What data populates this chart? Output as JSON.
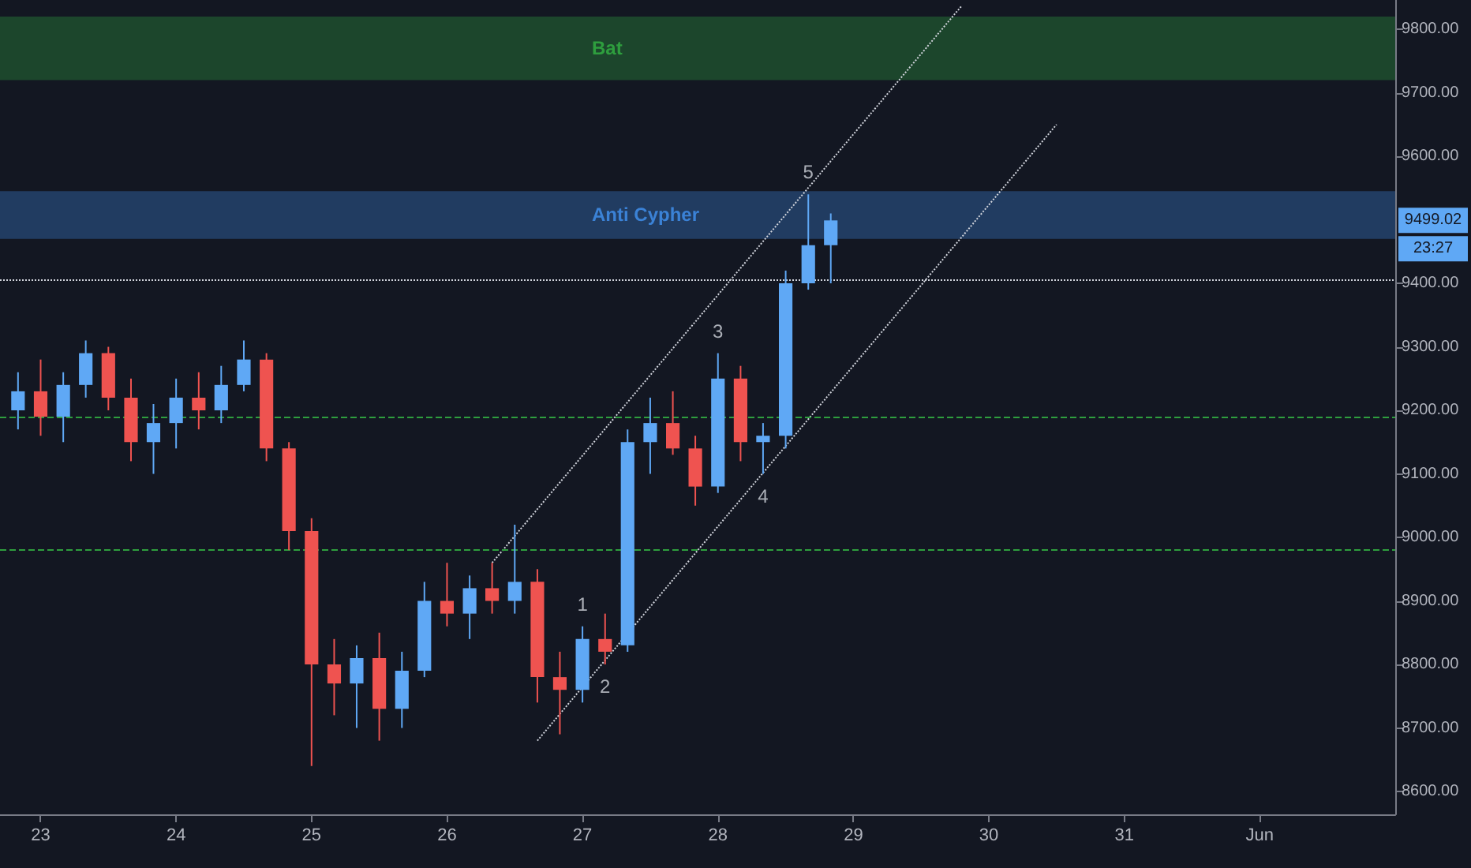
{
  "chart_data": {
    "type": "candlestick",
    "x": [
      22.833,
      23,
      23.167,
      23.333,
      23.5,
      23.667,
      23.833,
      24,
      24.167,
      24.333,
      24.5,
      24.667,
      24.833,
      25,
      25.167,
      25.333,
      25.5,
      25.667,
      25.833,
      26,
      26.167,
      26.333,
      26.5,
      26.667,
      26.833,
      27,
      27.167,
      27.333,
      27.5,
      27.667,
      27.833,
      28,
      28.167,
      28.333,
      28.5,
      28.667,
      28.833
    ],
    "ohlc": [
      [
        9200,
        9260,
        9170,
        9230
      ],
      [
        9230,
        9280,
        9160,
        9190
      ],
      [
        9190,
        9260,
        9150,
        9240
      ],
      [
        9240,
        9310,
        9220,
        9290
      ],
      [
        9290,
        9300,
        9200,
        9220
      ],
      [
        9220,
        9250,
        9120,
        9150
      ],
      [
        9150,
        9210,
        9100,
        9180
      ],
      [
        9180,
        9250,
        9140,
        9220
      ],
      [
        9220,
        9260,
        9170,
        9200
      ],
      [
        9200,
        9270,
        9180,
        9240
      ],
      [
        9240,
        9310,
        9230,
        9280
      ],
      [
        9280,
        9290,
        9120,
        9140
      ],
      [
        9140,
        9150,
        8980,
        9010
      ],
      [
        9010,
        9030,
        8640,
        8800
      ],
      [
        8800,
        8840,
        8720,
        8770
      ],
      [
        8770,
        8830,
        8700,
        8810
      ],
      [
        8810,
        8850,
        8680,
        8730
      ],
      [
        8730,
        8820,
        8700,
        8790
      ],
      [
        8790,
        8930,
        8780,
        8900
      ],
      [
        8900,
        8960,
        8860,
        8880
      ],
      [
        8880,
        8940,
        8840,
        8920
      ],
      [
        8920,
        8960,
        8880,
        8900
      ],
      [
        8900,
        9020,
        8880,
        8930
      ],
      [
        8930,
        8950,
        8740,
        8780
      ],
      [
        8780,
        8820,
        8690,
        8760
      ],
      [
        8760,
        8860,
        8740,
        8840
      ],
      [
        8840,
        8880,
        8800,
        8820
      ],
      [
        8830,
        9170,
        8820,
        9150
      ],
      [
        9150,
        9220,
        9100,
        9180
      ],
      [
        9180,
        9230,
        9130,
        9140
      ],
      [
        9140,
        9160,
        9050,
        9080
      ],
      [
        9080,
        9290,
        9070,
        9250
      ],
      [
        9250,
        9270,
        9120,
        9150
      ],
      [
        9150,
        9180,
        9100,
        9160
      ],
      [
        9160,
        9420,
        9140,
        9400
      ],
      [
        9400,
        9540,
        9390,
        9460
      ],
      [
        9460,
        9510,
        9400,
        9499.02
      ]
    ],
    "colors": [
      "#5fa8f5",
      "#ef5350",
      "#5fa8f5",
      "#5fa8f5",
      "#ef5350",
      "#ef5350",
      "#5fa8f5",
      "#5fa8f5",
      "#ef5350",
      "#5fa8f5",
      "#5fa8f5",
      "#ef5350",
      "#ef5350",
      "#ef5350",
      "#ef5350",
      "#5fa8f5",
      "#ef5350",
      "#5fa8f5",
      "#5fa8f5",
      "#ef5350",
      "#5fa8f5",
      "#ef5350",
      "#5fa8f5",
      "#ef5350",
      "#ef5350",
      "#5fa8f5",
      "#ef5350",
      "#5fa8f5",
      "#5fa8f5",
      "#ef5350",
      "#ef5350",
      "#5fa8f5",
      "#ef5350",
      "#5fa8f5",
      "#5fa8f5",
      "#5fa8f5",
      "#5fa8f5"
    ],
    "series": [
      {
        "type": "line",
        "x": [
          26.667,
          30.5
        ],
        "values": [
          8680,
          9650
        ],
        "color": "#d1d4dc",
        "line_style": "dotted"
      },
      {
        "type": "line",
        "x": [
          26.333,
          29.8
        ],
        "values": [
          8960,
          9837
        ],
        "color": "#d1d4dc",
        "line_style": "dotted"
      }
    ],
    "xlim": [
      22.7,
      33.0
    ],
    "xticks": [
      23,
      24,
      25,
      26,
      27,
      28,
      29,
      30,
      31,
      {
        "value": 32,
        "label": "Jun"
      }
    ],
    "ylim": [
      8564,
      9846
    ],
    "yticks": [
      {
        "value": 8600,
        "label": "8600.00"
      },
      {
        "value": 8700,
        "label": "8700.00"
      },
      {
        "value": 8800,
        "label": "8800.00"
      },
      {
        "value": 8900,
        "label": "8900.00"
      },
      {
        "value": 9000,
        "label": "9000.00"
      },
      {
        "value": 9100,
        "label": "9100.00"
      },
      {
        "value": 9200,
        "label": "9200.00"
      },
      {
        "value": 9300,
        "label": "9300.00"
      },
      {
        "value": 9400,
        "label": "9400.00"
      },
      {
        "value": 9600,
        "label": "9600.00"
      },
      {
        "value": 9700,
        "label": "9700.00"
      },
      {
        "value": 9800,
        "label": "9800.00"
      }
    ],
    "bands": [
      {
        "axis": "y",
        "from": 9720,
        "to": 9820,
        "label": "Bat",
        "color": "#2e9e3e"
      },
      {
        "axis": "y",
        "from": 9470,
        "to": 9545,
        "label": "Anti Cypher",
        "color": "#3b82d6"
      }
    ],
    "ref_lines": [
      {
        "axis": "y",
        "value": 9190,
        "color": "#2e9e3e",
        "line_style": "dashed"
      },
      {
        "axis": "y",
        "value": 8980,
        "color": "#2e9e3e",
        "line_style": "dashed"
      },
      {
        "axis": "y",
        "value": 9405,
        "color": "#d1d4dc",
        "line_style": "dotted"
      }
    ],
    "annotations": [
      {
        "text": "1",
        "x": 27.0,
        "y": 8860
      },
      {
        "text": "2",
        "x": 27.167,
        "y": 8800
      },
      {
        "text": "3",
        "x": 28.0,
        "y": 9290
      },
      {
        "text": "4",
        "x": 28.333,
        "y": 9100
      },
      {
        "text": "5",
        "x": 28.667,
        "y": 9540
      },
      {
        "text": "9499.02",
        "y": 9499.02
      },
      "23:27"
    ],
    "grid": false
  }
}
